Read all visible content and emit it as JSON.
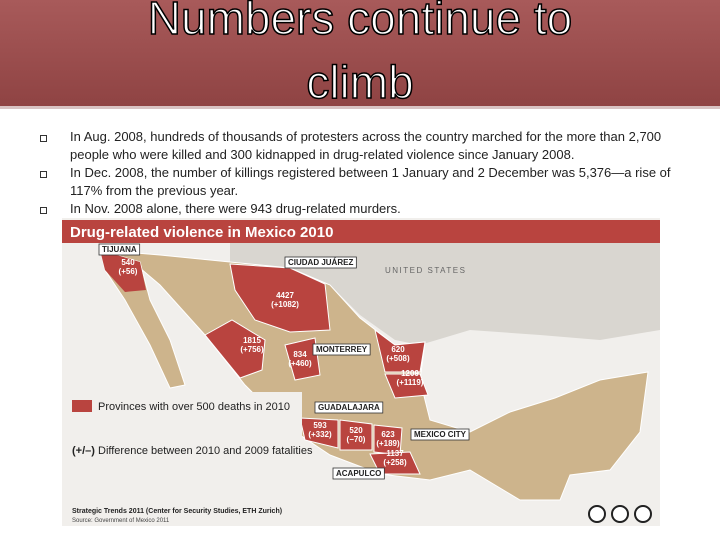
{
  "title": "Numbers continue to climb",
  "bullets": [
    "In Aug. 2008, hundreds of thousands of protesters across the country marched for the more than 2,700 people who were killed and 300 kidnapped in drug-related violence since January 2008.",
    "In Dec. 2008, the number of killings registered between 1 January and 2 December was 5,376—a rise of 117% from the previous year.",
    "In Nov. 2008 alone, there were 943 drug-related murders."
  ],
  "map": {
    "title": "Drug-related violence in Mexico 2010",
    "cities": [
      "TIJUANA",
      "CIUDAD JUÁREZ",
      "MONTERREY",
      "GUADALAJARA",
      "MEXICO CITY",
      "ACAPULCO"
    ],
    "country": "UNITED STATES",
    "regions": [
      {
        "deaths": "540",
        "change": "(+56)"
      },
      {
        "deaths": "4427",
        "change": "(+1082)"
      },
      {
        "deaths": "1815",
        "change": "(+756)"
      },
      {
        "deaths": "834",
        "change": "(+460)"
      },
      {
        "deaths": "620",
        "change": "(+508)"
      },
      {
        "deaths": "1209",
        "change": "(+1119)"
      },
      {
        "deaths": "593",
        "change": "(+332)"
      },
      {
        "deaths": "520",
        "change": "(−70)"
      },
      {
        "deaths": "623",
        "change": "(+189)"
      },
      {
        "deaths": "1137",
        "change": "(+258)"
      }
    ],
    "legend": {
      "provinces": "Provinces with over 500 deaths in 2010",
      "key": "(+/–)",
      "difference": "Difference between 2010 and 2009 fatalities"
    },
    "credits": [
      "Strategic Trends 2011 (Center for Security Studies, ETH Zurich)",
      "Source: Government of Mexico 2011"
    ]
  }
}
